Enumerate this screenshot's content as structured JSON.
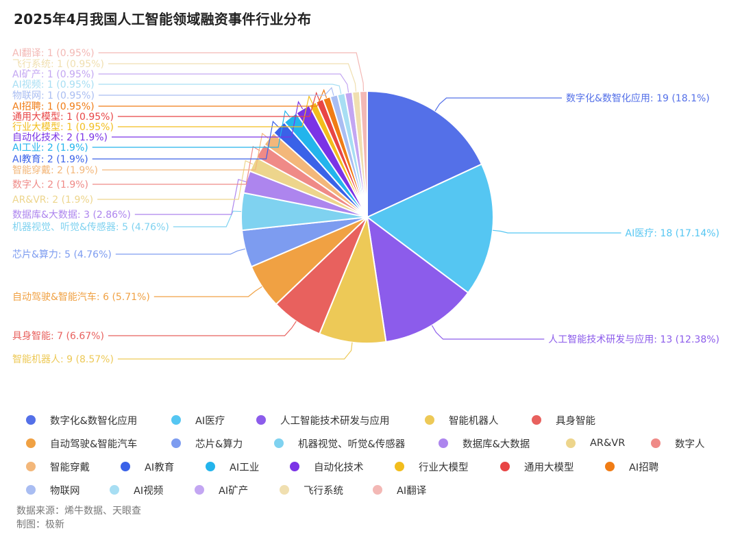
{
  "chart_data": {
    "type": "pie",
    "title": "2025年4月我国人工智能领域融资事件行业分布",
    "legend_position": "bottom",
    "slices": [
      {
        "name": "数字化&数智化应用",
        "value": 19,
        "percent": "18.1%",
        "color": "#5470e8"
      },
      {
        "name": "AI医疗",
        "value": 18,
        "percent": "17.14%",
        "color": "#55c6f2"
      },
      {
        "name": "人工智能技术研发与应用",
        "value": 13,
        "percent": "12.38%",
        "color": "#8c5ceb"
      },
      {
        "name": "智能机器人",
        "value": 9,
        "percent": "8.57%",
        "color": "#edc957"
      },
      {
        "name": "具身智能",
        "value": 7,
        "percent": "6.67%",
        "color": "#e8615e"
      },
      {
        "name": "自动驾驶&智能汽车",
        "value": 6,
        "percent": "5.71%",
        "color": "#f0a143"
      },
      {
        "name": "芯片&算力",
        "value": 5,
        "percent": "4.76%",
        "color": "#7d9cf0"
      },
      {
        "name": "机器视觉、听觉&传感器",
        "value": 5,
        "percent": "4.76%",
        "color": "#7fd2f0"
      },
      {
        "name": "数据库&大数据",
        "value": 3,
        "percent": "2.86%",
        "color": "#ad85ee"
      },
      {
        "name": "AR&VR",
        "value": 2,
        "percent": "1.9%",
        "color": "#edd58c"
      },
      {
        "name": "数字人",
        "value": 2,
        "percent": "1.9%",
        "color": "#ef8a87"
      },
      {
        "name": "智能穿戴",
        "value": 2,
        "percent": "1.9%",
        "color": "#f3b77a"
      },
      {
        "name": "AI教育",
        "value": 2,
        "percent": "1.9%",
        "color": "#3a62e8"
      },
      {
        "name": "AI工业",
        "value": 2,
        "percent": "1.9%",
        "color": "#23b4ec"
      },
      {
        "name": "自动化技术",
        "value": 2,
        "percent": "1.9%",
        "color": "#7b33e6"
      },
      {
        "name": "行业大模型",
        "value": 1,
        "percent": "0.95%",
        "color": "#f2bd1c"
      },
      {
        "name": "通用大模型",
        "value": 1,
        "percent": "0.95%",
        "color": "#e84545"
      },
      {
        "name": "AI招聘",
        "value": 1,
        "percent": "0.95%",
        "color": "#f07c15"
      },
      {
        "name": "物联网",
        "value": 1,
        "percent": "0.95%",
        "color": "#a9bdf2"
      },
      {
        "name": "AI视频",
        "value": 1,
        "percent": "0.95%",
        "color": "#a7def3"
      },
      {
        "name": "AI矿产",
        "value": 1,
        "percent": "0.95%",
        "color": "#c3a6f2"
      },
      {
        "name": "飞行系统",
        "value": 1,
        "percent": "0.95%",
        "color": "#f0dfb0"
      },
      {
        "name": "AI翻译",
        "value": 1,
        "percent": "0.95%",
        "color": "#f3b8b5"
      }
    ]
  },
  "source": {
    "line1": "数据来源：烯牛数据、天眼查",
    "line2": "制图：极新"
  }
}
